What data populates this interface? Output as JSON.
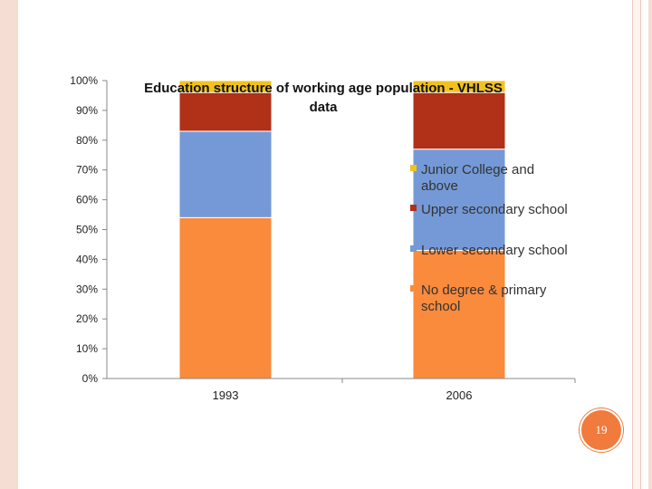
{
  "colors": {
    "junior_college": "#f2c21b",
    "upper_secondary": "#b03018",
    "lower_secondary": "#7499d6",
    "no_degree": "#fa8a3c",
    "badge": "#f07b3c"
  },
  "page_number": "19",
  "chart_data": {
    "type": "bar",
    "stacked": true,
    "title": "Education structure of working age population - VHLSS data",
    "title_lines": [
      "Education structure of working age population - VHLSS",
      "data"
    ],
    "categories": [
      "1993",
      "2006"
    ],
    "series": [
      {
        "name": "No degree & primary school",
        "name_lines": [
          "No degree & primary",
          "school"
        ],
        "color": "#fa8a3c",
        "values": [
          54,
          43
        ]
      },
      {
        "name": "Lower secondary school",
        "name_lines": [
          "Lower secondary school"
        ],
        "color": "#7499d6",
        "values": [
          29,
          34
        ]
      },
      {
        "name": "Upper secondary school",
        "name_lines": [
          "Upper secondary school"
        ],
        "color": "#b03018",
        "values": [
          13,
          19
        ]
      },
      {
        "name": "Junior College and above",
        "name_lines": [
          "Junior College and",
          "above"
        ],
        "color": "#f2c21b",
        "values": [
          4,
          4
        ]
      }
    ],
    "y_ticks": [
      "0%",
      "10%",
      "20%",
      "30%",
      "40%",
      "50%",
      "60%",
      "70%",
      "80%",
      "90%",
      "100%"
    ],
    "ylim": [
      0,
      100
    ],
    "grid": false,
    "legend_position": "right"
  }
}
